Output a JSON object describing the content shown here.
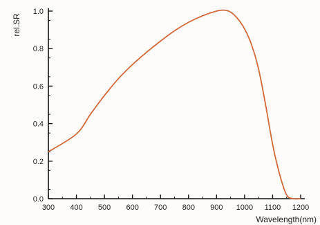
{
  "chart_data": {
    "type": "line",
    "xlabel": "Wavelength(nm)",
    "ylabel": "rel.SR",
    "xlim": [
      300,
      1200
    ],
    "ylim": [
      0.0,
      1.0
    ],
    "xticks": [
      300,
      400,
      500,
      600,
      700,
      800,
      900,
      1000,
      1100,
      1200
    ],
    "yticks": [
      0.0,
      0.2,
      0.4,
      0.6,
      0.8,
      1.0
    ],
    "xtick_labels": [
      "300",
      "400",
      "500",
      "600",
      "700",
      "800",
      "900",
      "1000",
      "1100",
      "1200"
    ],
    "ytick_labels": [
      "0.0",
      "0.2",
      "0.4",
      "0.6",
      "0.8",
      "1.0"
    ],
    "grid": false,
    "line_color": "#d2693a",
    "series": [
      {
        "x": [
          300,
          400,
          450,
          500,
          550,
          600,
          650,
          700,
          750,
          800,
          850,
          900,
          925,
          950,
          975,
          1000,
          1025,
          1050,
          1075,
          1100,
          1125,
          1150,
          1175,
          1200
        ],
        "values": [
          0.25,
          0.345,
          0.45,
          0.55,
          0.64,
          0.715,
          0.78,
          0.84,
          0.895,
          0.94,
          0.975,
          1.0,
          1.005,
          0.995,
          0.96,
          0.905,
          0.82,
          0.69,
          0.5,
          0.29,
          0.13,
          0.02,
          0.0,
          0.0
        ]
      }
    ]
  }
}
